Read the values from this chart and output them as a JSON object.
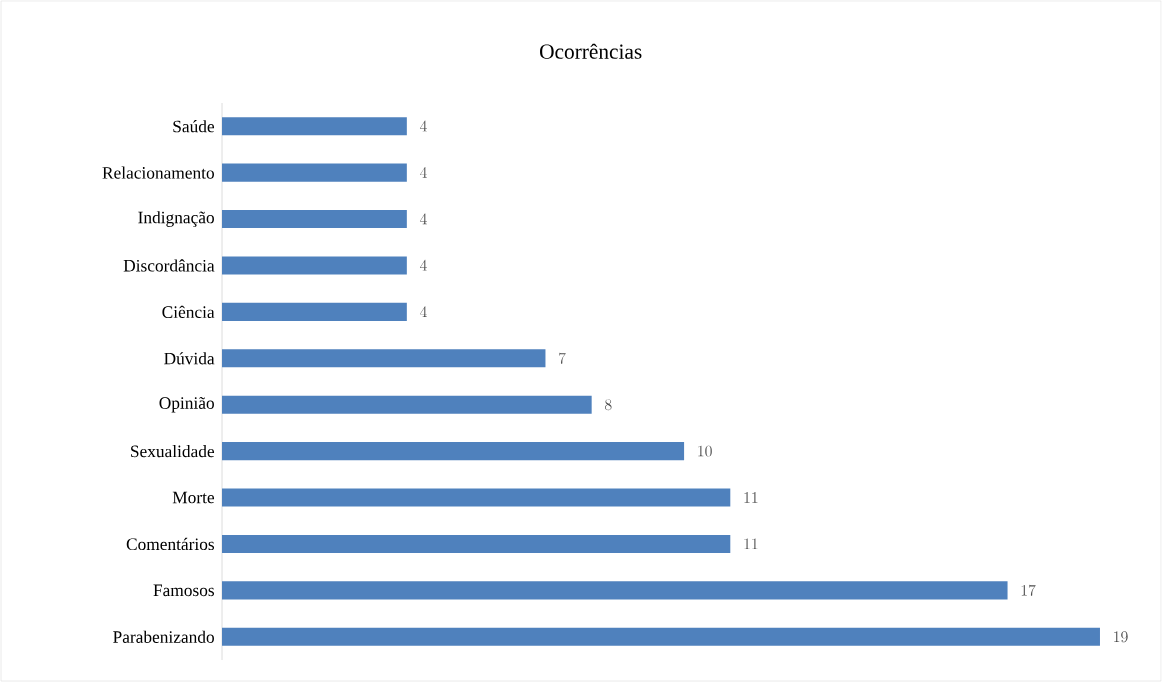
{
  "chart_data": {
    "type": "bar",
    "orientation": "horizontal",
    "title": "Ocorrências",
    "categories": [
      "Saúde",
      "Relacionamento",
      "Indignação",
      "Discordância",
      "Ciência",
      "Dúvida",
      "Opinião",
      "Sexualidade",
      "Morte",
      "Comentários",
      "Famosos",
      "Parabenizando"
    ],
    "values": [
      4,
      4,
      4,
      4,
      4,
      7,
      8,
      10,
      11,
      11,
      17,
      19
    ],
    "color": "#4f81bd",
    "data_labels": true,
    "tick_labels": "y"
  }
}
